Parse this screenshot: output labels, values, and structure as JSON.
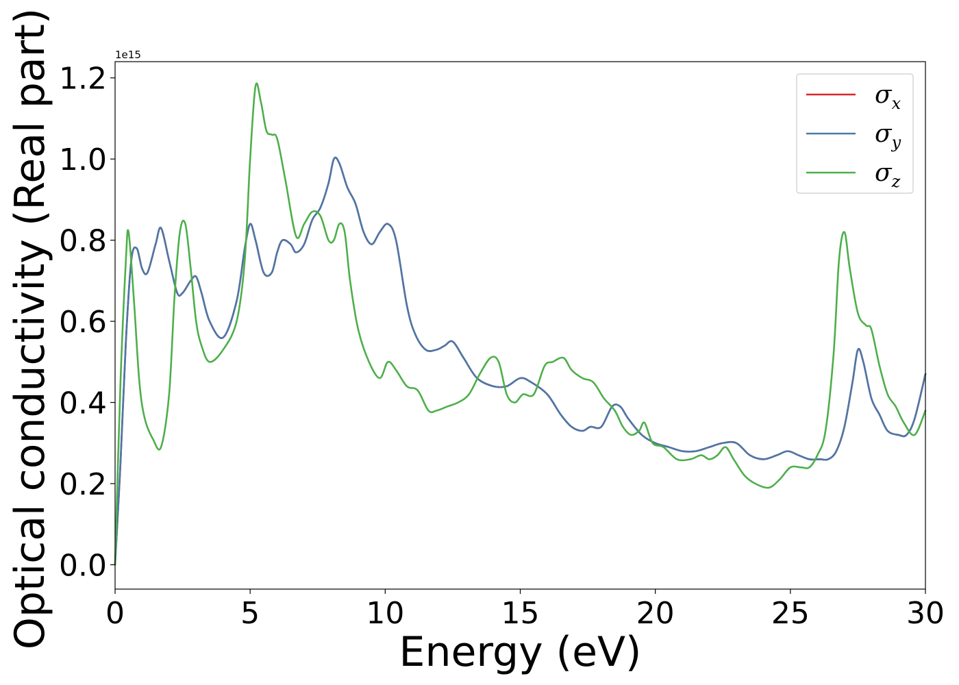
{
  "chart_data": {
    "type": "line",
    "title": "",
    "xlabel": "Energy (eV)",
    "ylabel": "Optical conductivity (Real part)",
    "y_offset_label": "1e15",
    "xlim": [
      0,
      30
    ],
    "ylim": [
      -0.06,
      1.24
    ],
    "xticks": [
      0,
      5,
      10,
      15,
      20,
      25,
      30
    ],
    "xtick_labels": [
      "0",
      "5",
      "10",
      "15",
      "20",
      "25",
      "30"
    ],
    "yticks": [
      0.0,
      0.2,
      0.4,
      0.6,
      0.8,
      1.0,
      1.2
    ],
    "ytick_labels": [
      "0.0",
      "0.2",
      "0.4",
      "0.6",
      "0.8",
      "1.0",
      "1.2"
    ],
    "grid": false,
    "legend_position": "top-right",
    "series": [
      {
        "name": "σx",
        "symbol": "σ",
        "subscript": "x",
        "color": "#d62728",
        "x": [
          0,
          0.2,
          0.4,
          0.6,
          0.8,
          1.0,
          1.2,
          1.5,
          1.7,
          2.0,
          2.3,
          2.5,
          2.8,
          3.0,
          3.2,
          3.5,
          4.0,
          4.5,
          4.8,
          5.0,
          5.2,
          5.5,
          5.8,
          6.0,
          6.2,
          6.5,
          6.7,
          7.0,
          7.3,
          7.6,
          7.9,
          8.1,
          8.3,
          8.6,
          8.9,
          9.2,
          9.5,
          9.8,
          10.1,
          10.4,
          10.8,
          11.1,
          11.5,
          11.9,
          12.2,
          12.5,
          12.9,
          13.4,
          14.0,
          14.5,
          15.0,
          15.4,
          16.0,
          16.5,
          16.9,
          17.3,
          17.6,
          18.0,
          18.4,
          18.7,
          19.0,
          19.5,
          20.0,
          20.5,
          21.0,
          21.5,
          22.0,
          22.5,
          23.0,
          23.5,
          24.0,
          24.5,
          24.9,
          25.3,
          25.7,
          26.1,
          26.4,
          26.7,
          27.0,
          27.3,
          27.5,
          27.7,
          28.0,
          28.3,
          28.6,
          29.0,
          29.3,
          29.6,
          30.0
        ],
        "y": [
          0.0,
          0.25,
          0.55,
          0.75,
          0.78,
          0.73,
          0.72,
          0.79,
          0.83,
          0.75,
          0.67,
          0.67,
          0.7,
          0.71,
          0.67,
          0.6,
          0.56,
          0.65,
          0.78,
          0.84,
          0.8,
          0.72,
          0.72,
          0.77,
          0.8,
          0.79,
          0.77,
          0.79,
          0.85,
          0.88,
          0.94,
          1.0,
          0.99,
          0.93,
          0.89,
          0.82,
          0.79,
          0.82,
          0.84,
          0.8,
          0.64,
          0.57,
          0.53,
          0.53,
          0.54,
          0.55,
          0.51,
          0.46,
          0.44,
          0.44,
          0.46,
          0.45,
          0.42,
          0.37,
          0.34,
          0.33,
          0.34,
          0.34,
          0.39,
          0.39,
          0.36,
          0.32,
          0.3,
          0.29,
          0.28,
          0.28,
          0.29,
          0.3,
          0.3,
          0.27,
          0.26,
          0.27,
          0.28,
          0.27,
          0.26,
          0.26,
          0.26,
          0.28,
          0.34,
          0.45,
          0.53,
          0.5,
          0.41,
          0.37,
          0.33,
          0.32,
          0.32,
          0.36,
          0.47
        ]
      },
      {
        "name": "σy",
        "symbol": "σ",
        "subscript": "y",
        "color": "#4a78a8",
        "x": [
          0,
          0.2,
          0.4,
          0.6,
          0.8,
          1.0,
          1.2,
          1.5,
          1.7,
          2.0,
          2.3,
          2.5,
          2.8,
          3.0,
          3.2,
          3.5,
          4.0,
          4.5,
          4.8,
          5.0,
          5.2,
          5.5,
          5.8,
          6.0,
          6.2,
          6.5,
          6.7,
          7.0,
          7.3,
          7.6,
          7.9,
          8.1,
          8.3,
          8.6,
          8.9,
          9.2,
          9.5,
          9.8,
          10.1,
          10.4,
          10.8,
          11.1,
          11.5,
          11.9,
          12.2,
          12.5,
          12.9,
          13.4,
          14.0,
          14.5,
          15.0,
          15.4,
          16.0,
          16.5,
          16.9,
          17.3,
          17.6,
          18.0,
          18.4,
          18.7,
          19.0,
          19.5,
          20.0,
          20.5,
          21.0,
          21.5,
          22.0,
          22.5,
          23.0,
          23.5,
          24.0,
          24.5,
          24.9,
          25.3,
          25.7,
          26.1,
          26.4,
          26.7,
          27.0,
          27.3,
          27.5,
          27.7,
          28.0,
          28.3,
          28.6,
          29.0,
          29.3,
          29.6,
          30.0
        ],
        "y": [
          0.0,
          0.25,
          0.55,
          0.75,
          0.78,
          0.73,
          0.72,
          0.79,
          0.83,
          0.75,
          0.67,
          0.67,
          0.7,
          0.71,
          0.67,
          0.6,
          0.56,
          0.65,
          0.78,
          0.84,
          0.8,
          0.72,
          0.72,
          0.77,
          0.8,
          0.79,
          0.77,
          0.79,
          0.85,
          0.88,
          0.94,
          1.0,
          0.99,
          0.93,
          0.89,
          0.82,
          0.79,
          0.82,
          0.84,
          0.8,
          0.64,
          0.57,
          0.53,
          0.53,
          0.54,
          0.55,
          0.51,
          0.46,
          0.44,
          0.44,
          0.46,
          0.45,
          0.42,
          0.37,
          0.34,
          0.33,
          0.34,
          0.34,
          0.39,
          0.39,
          0.36,
          0.32,
          0.3,
          0.29,
          0.28,
          0.28,
          0.29,
          0.3,
          0.3,
          0.27,
          0.26,
          0.27,
          0.28,
          0.27,
          0.26,
          0.26,
          0.26,
          0.28,
          0.34,
          0.45,
          0.53,
          0.5,
          0.41,
          0.37,
          0.33,
          0.32,
          0.32,
          0.36,
          0.47
        ]
      },
      {
        "name": "σz",
        "symbol": "σ",
        "subscript": "z",
        "color": "#4daf4a",
        "x": [
          0,
          0.2,
          0.4,
          0.5,
          0.7,
          0.9,
          1.1,
          1.4,
          1.7,
          2.0,
          2.2,
          2.4,
          2.6,
          2.8,
          3.0,
          3.2,
          3.5,
          4.0,
          4.5,
          4.8,
          5.0,
          5.2,
          5.4,
          5.6,
          5.8,
          6.0,
          6.3,
          6.7,
          7.0,
          7.3,
          7.6,
          7.9,
          8.1,
          8.3,
          8.5,
          8.7,
          9.0,
          9.4,
          9.8,
          10.1,
          10.4,
          10.8,
          11.2,
          11.6,
          11.9,
          12.3,
          12.7,
          13.1,
          13.5,
          13.9,
          14.2,
          14.5,
          14.8,
          15.1,
          15.5,
          15.9,
          16.2,
          16.6,
          16.9,
          17.3,
          17.7,
          18.1,
          18.5,
          18.8,
          19.1,
          19.4,
          19.6,
          19.9,
          20.3,
          20.8,
          21.3,
          21.7,
          22.0,
          22.3,
          22.6,
          22.9,
          23.3,
          23.7,
          24.2,
          24.6,
          25.0,
          25.4,
          25.7,
          26.0,
          26.3,
          26.6,
          26.8,
          27.0,
          27.2,
          27.5,
          27.8,
          28.0,
          28.3,
          28.6,
          28.9,
          29.2,
          29.6,
          30.0
        ],
        "y": [
          0.0,
          0.45,
          0.75,
          0.82,
          0.65,
          0.45,
          0.36,
          0.31,
          0.29,
          0.42,
          0.66,
          0.82,
          0.84,
          0.73,
          0.6,
          0.54,
          0.5,
          0.53,
          0.6,
          0.75,
          1.0,
          1.18,
          1.14,
          1.07,
          1.06,
          1.05,
          0.95,
          0.81,
          0.84,
          0.87,
          0.86,
          0.8,
          0.8,
          0.84,
          0.82,
          0.7,
          0.58,
          0.5,
          0.46,
          0.5,
          0.48,
          0.44,
          0.43,
          0.38,
          0.38,
          0.39,
          0.4,
          0.42,
          0.47,
          0.51,
          0.5,
          0.42,
          0.4,
          0.42,
          0.42,
          0.49,
          0.5,
          0.51,
          0.48,
          0.46,
          0.45,
          0.41,
          0.38,
          0.34,
          0.32,
          0.33,
          0.35,
          0.3,
          0.29,
          0.26,
          0.26,
          0.27,
          0.26,
          0.27,
          0.29,
          0.26,
          0.22,
          0.2,
          0.19,
          0.21,
          0.24,
          0.24,
          0.24,
          0.27,
          0.33,
          0.52,
          0.75,
          0.82,
          0.73,
          0.62,
          0.59,
          0.58,
          0.49,
          0.42,
          0.39,
          0.35,
          0.32,
          0.38
        ]
      }
    ]
  }
}
